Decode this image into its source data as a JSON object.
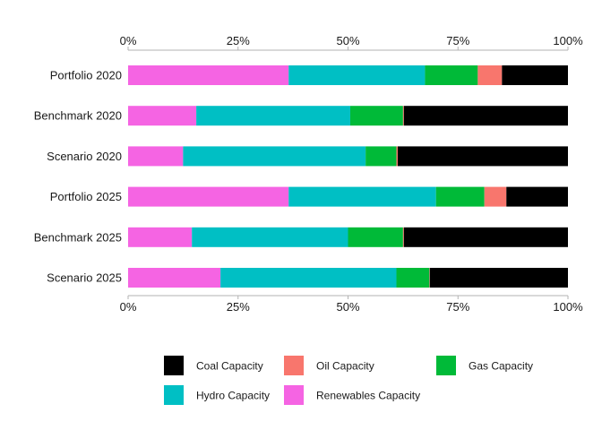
{
  "chart_data": {
    "type": "bar",
    "orientation": "horizontal",
    "stacked": true,
    "normalized": true,
    "title": "",
    "xlabel": "",
    "ylabel": "",
    "xlim": [
      0,
      100
    ],
    "x_ticks": [
      "0%",
      "25%",
      "50%",
      "75%",
      "100%"
    ],
    "x_tick_values": [
      0,
      25,
      50,
      75,
      100
    ],
    "axis_top": true,
    "axis_bottom": true,
    "grid": false,
    "legend_position": "bottom",
    "categories": [
      "Portfolio 2020",
      "Benchmark 2020",
      "Scenario 2020",
      "Portfolio 2025",
      "Benchmark 2025",
      "Scenario 2025"
    ],
    "series": [
      {
        "name": "Renewables Capacity",
        "color": "#F564E3",
        "values": [
          36.5,
          15.5,
          12.5,
          36.5,
          14.5,
          21.0
        ]
      },
      {
        "name": "Hydro Capacity",
        "color": "#00BFC4",
        "values": [
          31.0,
          35.0,
          41.5,
          33.5,
          35.5,
          40.0
        ]
      },
      {
        "name": "Gas Capacity",
        "color": "#00BA38",
        "values": [
          12.0,
          12.0,
          7.0,
          11.0,
          12.5,
          7.5
        ]
      },
      {
        "name": "Oil Capacity",
        "color": "#F8766D",
        "values": [
          5.5,
          0.2,
          0.3,
          5.0,
          0.2,
          0.1
        ]
      },
      {
        "name": "Coal Capacity",
        "color": "#000000",
        "values": [
          15.0,
          37.3,
          38.7,
          14.0,
          37.3,
          31.4
        ]
      }
    ],
    "legend_order": [
      "Coal Capacity",
      "Oil Capacity",
      "Gas Capacity",
      "Hydro Capacity",
      "Renewables Capacity"
    ]
  }
}
